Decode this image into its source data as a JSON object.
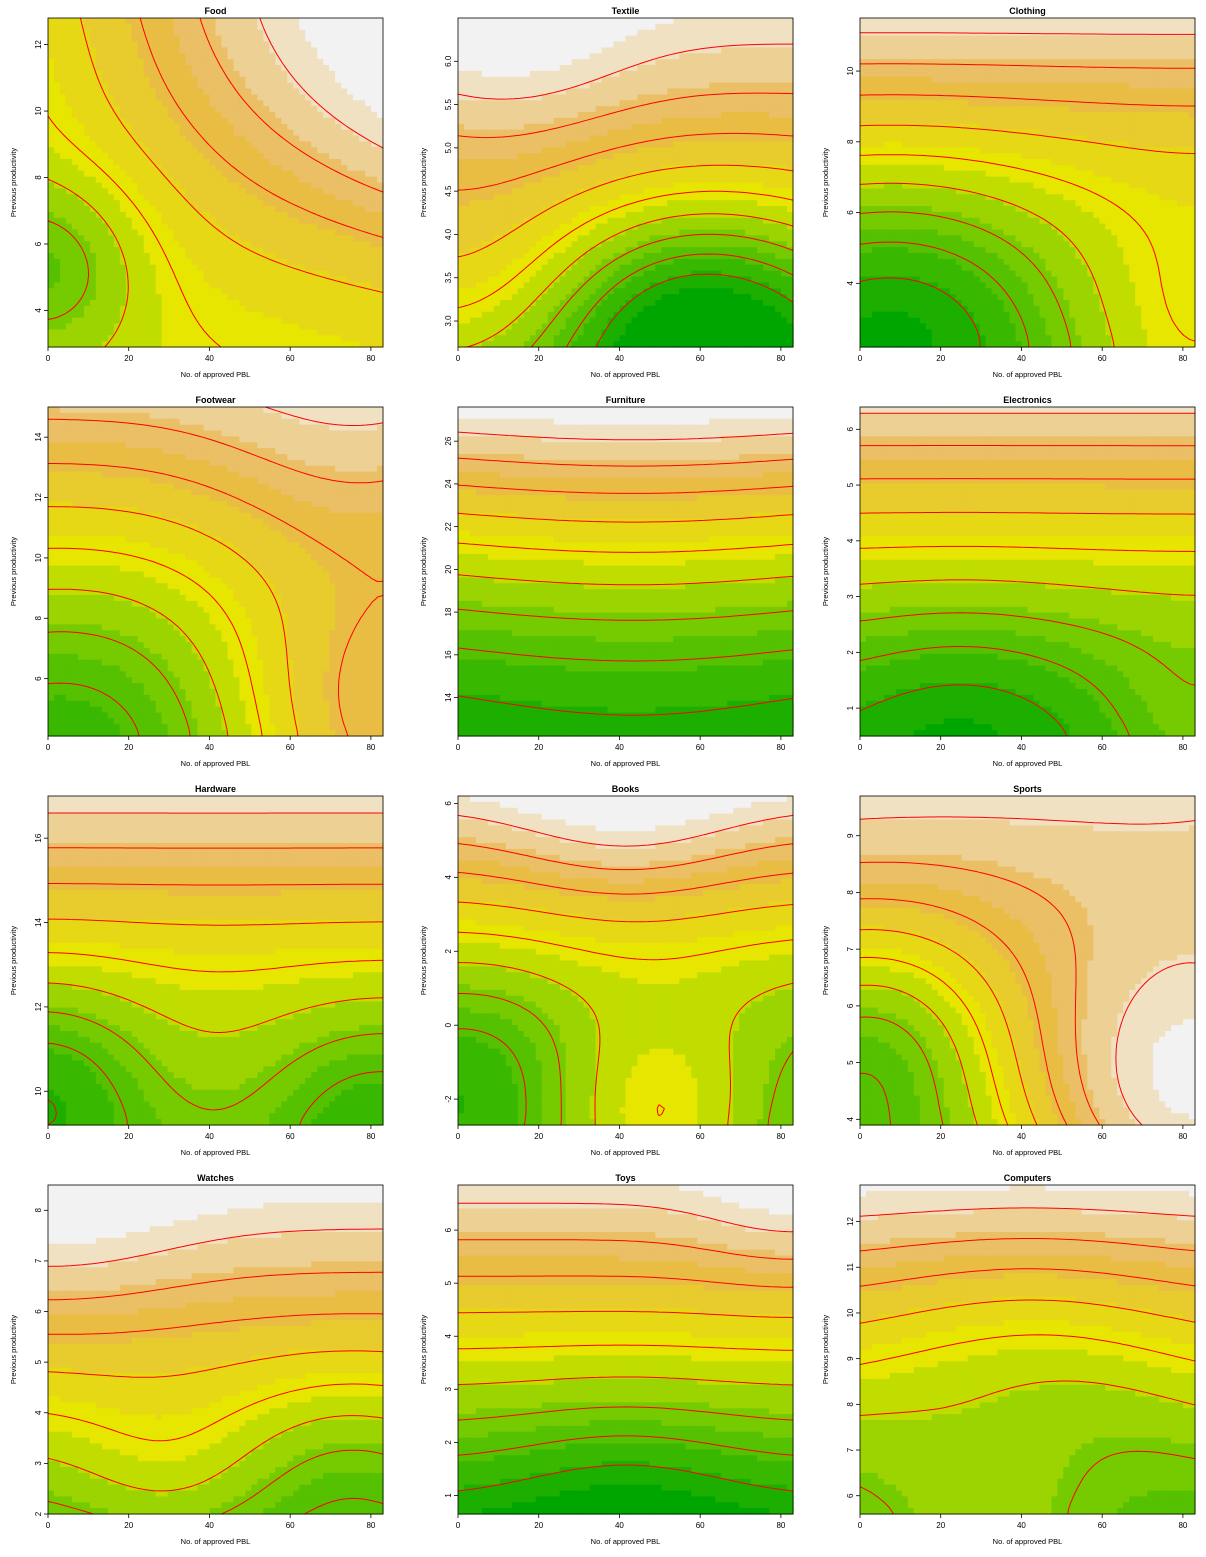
{
  "figure": {
    "xlabel": "No. of approved PBL",
    "ylabel": "Previous productivity"
  },
  "palette": {
    "low": "#00a600",
    "mid1": "#63c600",
    "mid2": "#e6e600",
    "mid3": "#eab64e",
    "high": "#f2f2f2",
    "contour_line": "#ff0000"
  },
  "chart_data": [
    {
      "type": "heatmap",
      "title": "Food",
      "xlabel": "No. of approved PBL",
      "ylabel": "Previous productivity",
      "xlim": [
        0,
        83
      ],
      "ylim": [
        2.9,
        12.8
      ],
      "xticks": [
        0,
        20,
        40,
        60,
        80
      ],
      "yticks": [
        4,
        6,
        8,
        10,
        12
      ],
      "pattern": "food"
    },
    {
      "type": "heatmap",
      "title": "Textile",
      "xlabel": "No. of approved PBL",
      "ylabel": "Previous productivity",
      "xlim": [
        0,
        83
      ],
      "ylim": [
        2.7,
        6.5
      ],
      "xticks": [
        0,
        20,
        40,
        60,
        80
      ],
      "yticks": [
        "3.0",
        "3.5",
        "4.0",
        "4.5",
        "5.0",
        "5.5",
        "6.0"
      ],
      "pattern": "textile"
    },
    {
      "type": "heatmap",
      "title": "Clothing",
      "xlabel": "No. of approved PBL",
      "ylabel": "Previous productivity",
      "xlim": [
        0,
        83
      ],
      "ylim": [
        2.2,
        11.5
      ],
      "xticks": [
        0,
        20,
        40,
        60,
        80
      ],
      "yticks": [
        4,
        6,
        8,
        10
      ],
      "pattern": "clothing"
    },
    {
      "type": "heatmap",
      "title": "Footwear",
      "xlabel": "No. of approved PBL",
      "ylabel": "Previous productivity",
      "xlim": [
        0,
        83
      ],
      "ylim": [
        4.1,
        15
      ],
      "xticks": [
        0,
        20,
        40,
        60,
        80
      ],
      "yticks": [
        6,
        8,
        10,
        12,
        14
      ],
      "pattern": "footwear"
    },
    {
      "type": "heatmap",
      "title": "Furniture",
      "xlabel": "No. of approved PBL",
      "ylabel": "Previous productivity",
      "xlim": [
        0,
        83
      ],
      "ylim": [
        12.2,
        27.6
      ],
      "xticks": [
        0,
        20,
        40,
        60,
        80
      ],
      "yticks": [
        14,
        16,
        18,
        20,
        22,
        24,
        26
      ],
      "pattern": "furniture"
    },
    {
      "type": "heatmap",
      "title": "Electronics",
      "xlabel": "No. of approved PBL",
      "ylabel": "Previous productivity",
      "xlim": [
        0,
        83
      ],
      "ylim": [
        0.5,
        6.4
      ],
      "xticks": [
        0,
        20,
        40,
        60,
        80
      ],
      "yticks": [
        1,
        2,
        3,
        4,
        5,
        6
      ],
      "pattern": "electronics"
    },
    {
      "type": "heatmap",
      "title": "Hardware",
      "xlabel": "No. of approved PBL",
      "ylabel": "Previous productivity",
      "xlim": [
        0,
        83
      ],
      "ylim": [
        9.2,
        17
      ],
      "xticks": [
        0,
        20,
        40,
        60,
        80
      ],
      "yticks": [
        10,
        12,
        14,
        16
      ],
      "pattern": "hardware"
    },
    {
      "type": "heatmap",
      "title": "Books",
      "xlabel": "No. of approved PBL",
      "ylabel": "Previous productivity",
      "xlim": [
        0,
        83
      ],
      "ylim": [
        -2.7,
        6.2
      ],
      "xticks": [
        0,
        20,
        40,
        60,
        80
      ],
      "yticks": [
        -2,
        0,
        2,
        4,
        6
      ],
      "pattern": "books"
    },
    {
      "type": "heatmap",
      "title": "Sports",
      "xlabel": "No. of approved PBL",
      "ylabel": "Previous productivity",
      "xlim": [
        0,
        83
      ],
      "ylim": [
        3.9,
        9.7
      ],
      "xticks": [
        0,
        20,
        40,
        60,
        80
      ],
      "yticks": [
        4,
        5,
        6,
        7,
        8,
        9
      ],
      "pattern": "sports"
    },
    {
      "type": "heatmap",
      "title": "Watches",
      "xlabel": "No. of approved PBL",
      "ylabel": "Previous productivity",
      "xlim": [
        0,
        83
      ],
      "ylim": [
        2,
        8.5
      ],
      "xticks": [
        0,
        20,
        40,
        60,
        80
      ],
      "yticks": [
        2,
        3,
        4,
        5,
        6,
        7,
        8
      ],
      "pattern": "watches"
    },
    {
      "type": "heatmap",
      "title": "Toys",
      "xlabel": "No. of approved PBL",
      "ylabel": "Previous productivity",
      "xlim": [
        0,
        83
      ],
      "ylim": [
        0.65,
        6.85
      ],
      "xticks": [
        0,
        20,
        40,
        60,
        80
      ],
      "yticks": [
        1,
        2,
        3,
        4,
        5,
        6
      ],
      "pattern": "toys"
    },
    {
      "type": "heatmap",
      "title": "Computers",
      "xlabel": "No. of approved PBL",
      "ylabel": "Previous productivity",
      "xlim": [
        0,
        83
      ],
      "ylim": [
        5.6,
        12.8
      ],
      "xticks": [
        0,
        20,
        40,
        60,
        80
      ],
      "yticks": [
        6,
        7,
        8,
        9,
        10,
        11,
        12
      ],
      "pattern": "computers"
    }
  ]
}
